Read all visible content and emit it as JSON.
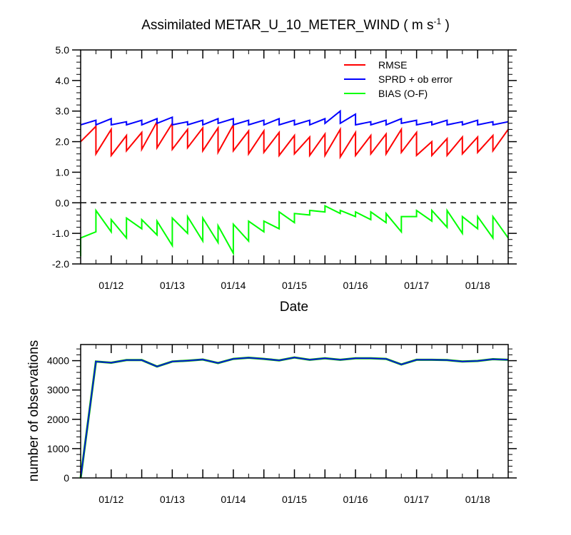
{
  "chart_data": [
    {
      "type": "line",
      "title": "Assimilated METAR_U_10_METER_WIND ( m s",
      "title_superscript": "-1",
      "title_close": " )",
      "xlabel": "Date",
      "ylabel": "",
      "ylim": [
        -2.0,
        5.0
      ],
      "xlim": [
        11.5,
        18.5
      ],
      "yticks": [
        -2.0,
        -1.0,
        0.0,
        1.0,
        2.0,
        3.0,
        4.0,
        5.0
      ],
      "ytick_labels": [
        "-2.0",
        "-1.0",
        "0.0",
        "1.0",
        "2.0",
        "3.0",
        "4.0",
        "5.0"
      ],
      "xticks": [
        12,
        13,
        14,
        15,
        16,
        17,
        18
      ],
      "xtick_labels": [
        "01/12",
        "01/13",
        "01/14",
        "01/15",
        "01/16",
        "01/17",
        "01/18"
      ],
      "zero_line": true,
      "legend_position": "top-right",
      "series": [
        {
          "name": "RMSE",
          "color": "#ff0000",
          "x": [
            11.5,
            11.75,
            11.75,
            12.0,
            12.0,
            12.25,
            12.25,
            12.5,
            12.5,
            12.75,
            12.75,
            13.0,
            13.0,
            13.25,
            13.25,
            13.5,
            13.5,
            13.75,
            13.75,
            14.0,
            14.0,
            14.25,
            14.25,
            14.5,
            14.5,
            14.75,
            14.75,
            15.0,
            15.0,
            15.25,
            15.25,
            15.5,
            15.5,
            15.75,
            15.75,
            16.0,
            16.0,
            16.25,
            16.25,
            16.5,
            16.5,
            16.75,
            16.75,
            17.0,
            17.0,
            17.25,
            17.25,
            17.5,
            17.5,
            17.75,
            17.75,
            18.0,
            18.0,
            18.25,
            18.25,
            18.5
          ],
          "values": [
            2.0,
            2.5,
            1.6,
            2.4,
            1.55,
            2.2,
            1.7,
            2.3,
            1.75,
            2.65,
            1.8,
            2.6,
            1.75,
            2.4,
            1.8,
            2.45,
            1.7,
            2.45,
            1.65,
            2.55,
            1.7,
            2.35,
            1.6,
            2.35,
            1.65,
            2.3,
            1.55,
            2.2,
            1.6,
            2.15,
            1.55,
            2.25,
            1.55,
            2.4,
            1.5,
            2.3,
            1.55,
            2.2,
            1.6,
            2.25,
            1.6,
            2.4,
            1.65,
            2.3,
            1.55,
            2.0,
            1.55,
            2.1,
            1.55,
            2.15,
            1.6,
            2.15,
            1.65,
            2.2,
            1.7,
            2.4
          ]
        },
        {
          "name": "SPRD + ob error",
          "color": "#0000ff",
          "x": [
            11.5,
            11.75,
            11.75,
            12.0,
            12.0,
            12.25,
            12.25,
            12.5,
            12.5,
            12.75,
            12.75,
            13.0,
            13.0,
            13.25,
            13.25,
            13.5,
            13.5,
            13.75,
            13.75,
            14.0,
            14.0,
            14.25,
            14.25,
            14.5,
            14.5,
            14.75,
            14.75,
            15.0,
            15.0,
            15.25,
            15.25,
            15.5,
            15.5,
            15.75,
            15.75,
            16.0,
            16.0,
            16.25,
            16.25,
            16.5,
            16.5,
            16.75,
            16.75,
            17.0,
            17.0,
            17.25,
            17.25,
            17.5,
            17.5,
            17.75,
            17.75,
            18.0,
            18.0,
            18.25,
            18.25,
            18.5
          ],
          "values": [
            2.55,
            2.7,
            2.55,
            2.75,
            2.55,
            2.65,
            2.55,
            2.7,
            2.55,
            2.75,
            2.6,
            2.8,
            2.55,
            2.65,
            2.55,
            2.7,
            2.55,
            2.75,
            2.6,
            2.75,
            2.55,
            2.7,
            2.55,
            2.7,
            2.55,
            2.75,
            2.55,
            2.7,
            2.55,
            2.7,
            2.55,
            2.75,
            2.6,
            3.0,
            2.6,
            2.9,
            2.55,
            2.65,
            2.55,
            2.7,
            2.55,
            2.75,
            2.6,
            2.7,
            2.55,
            2.65,
            2.55,
            2.7,
            2.55,
            2.65,
            2.55,
            2.7,
            2.55,
            2.65,
            2.55,
            2.65
          ]
        },
        {
          "name": "BIAS (O-F)",
          "color": "#00ff00",
          "x": [
            11.5,
            11.5,
            11.75,
            11.75,
            12.0,
            12.0,
            12.25,
            12.25,
            12.5,
            12.5,
            12.75,
            12.75,
            13.0,
            13.0,
            13.25,
            13.25,
            13.5,
            13.5,
            13.75,
            13.75,
            14.0,
            14.0,
            14.25,
            14.25,
            14.5,
            14.5,
            14.75,
            14.75,
            15.0,
            15.0,
            15.25,
            15.25,
            15.5,
            15.5,
            15.75,
            15.75,
            16.0,
            16.0,
            16.25,
            16.25,
            16.5,
            16.5,
            16.75,
            16.75,
            17.0,
            17.0,
            17.25,
            17.25,
            17.5,
            17.5,
            17.75,
            17.75,
            18.0,
            18.0,
            18.25,
            18.25,
            18.5
          ],
          "values": [
            -1.75,
            -1.15,
            -0.95,
            -0.25,
            -0.95,
            -0.55,
            -1.15,
            -0.5,
            -0.85,
            -0.55,
            -1.05,
            -0.6,
            -1.4,
            -0.5,
            -1.0,
            -0.45,
            -1.25,
            -0.5,
            -1.3,
            -0.75,
            -1.65,
            -0.7,
            -1.25,
            -0.6,
            -0.95,
            -0.6,
            -0.85,
            -0.3,
            -0.65,
            -0.35,
            -0.4,
            -0.25,
            -0.3,
            -0.1,
            -0.35,
            -0.25,
            -0.45,
            -0.3,
            -0.55,
            -0.3,
            -0.65,
            -0.35,
            -0.95,
            -0.45,
            -0.45,
            -0.25,
            -0.6,
            -0.25,
            -0.8,
            -0.25,
            -1.0,
            -0.45,
            -0.85,
            -0.45,
            -1.15,
            -0.45,
            -1.15
          ]
        }
      ]
    },
    {
      "type": "line",
      "title": "",
      "xlabel": "",
      "ylabel": "number of observations",
      "ylim": [
        0,
        4550
      ],
      "xlim": [
        11.5,
        18.5
      ],
      "yticks": [
        0,
        1000,
        2000,
        3000,
        4000
      ],
      "ytick_labels": [
        "0",
        "1000",
        "2000",
        "3000",
        "4000"
      ],
      "xticks": [
        12,
        13,
        14,
        15,
        16,
        17,
        18
      ],
      "xtick_labels": [
        "01/12",
        "01/13",
        "01/14",
        "01/15",
        "01/16",
        "01/17",
        "01/18"
      ],
      "series": [
        {
          "name": "observations",
          "color": "#0000ff",
          "underlay_color": "#00aa00",
          "x": [
            11.5,
            11.75,
            12.0,
            12.25,
            12.5,
            12.75,
            13.0,
            13.25,
            13.5,
            13.75,
            14.0,
            14.25,
            14.5,
            14.75,
            15.0,
            15.25,
            15.5,
            15.75,
            16.0,
            16.25,
            16.5,
            16.75,
            17.0,
            17.25,
            17.5,
            17.75,
            18.0,
            18.25,
            18.5
          ],
          "values": [
            0,
            3970,
            3930,
            4020,
            4020,
            3800,
            3970,
            4000,
            4040,
            3920,
            4060,
            4100,
            4060,
            4010,
            4110,
            4030,
            4080,
            4030,
            4080,
            4080,
            4060,
            3870,
            4030,
            4030,
            4020,
            3970,
            3990,
            4050,
            4030
          ]
        }
      ]
    }
  ]
}
